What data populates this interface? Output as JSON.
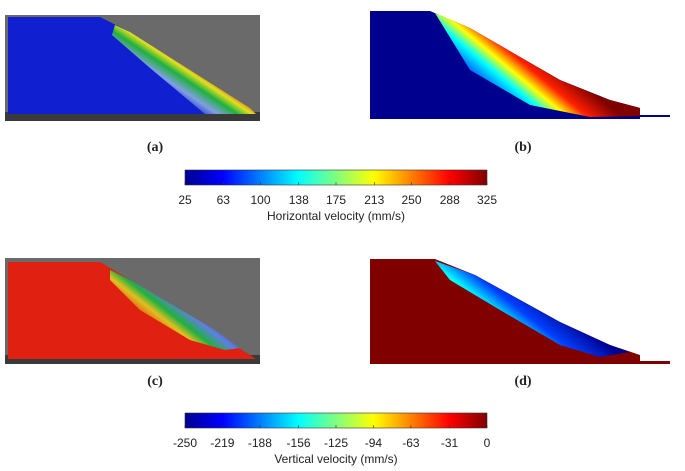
{
  "panels": [
    {
      "label": "(a)"
    },
    {
      "label": "(b)"
    },
    {
      "label": "(c)"
    },
    {
      "label": "(d)"
    }
  ],
  "colorbars": [
    {
      "label": "Horizontal velocity (mm/s)",
      "lim": [
        25,
        325
      ],
      "ticks": [
        25,
        63,
        100,
        138,
        175,
        213,
        250,
        288,
        325
      ]
    },
    {
      "label": "Vertical velocity (mm/s)",
      "lim": [
        -250,
        0
      ],
      "ticks": [
        -250,
        -219,
        -188,
        -156,
        -125,
        -94,
        -63,
        -31,
        0
      ]
    }
  ]
}
